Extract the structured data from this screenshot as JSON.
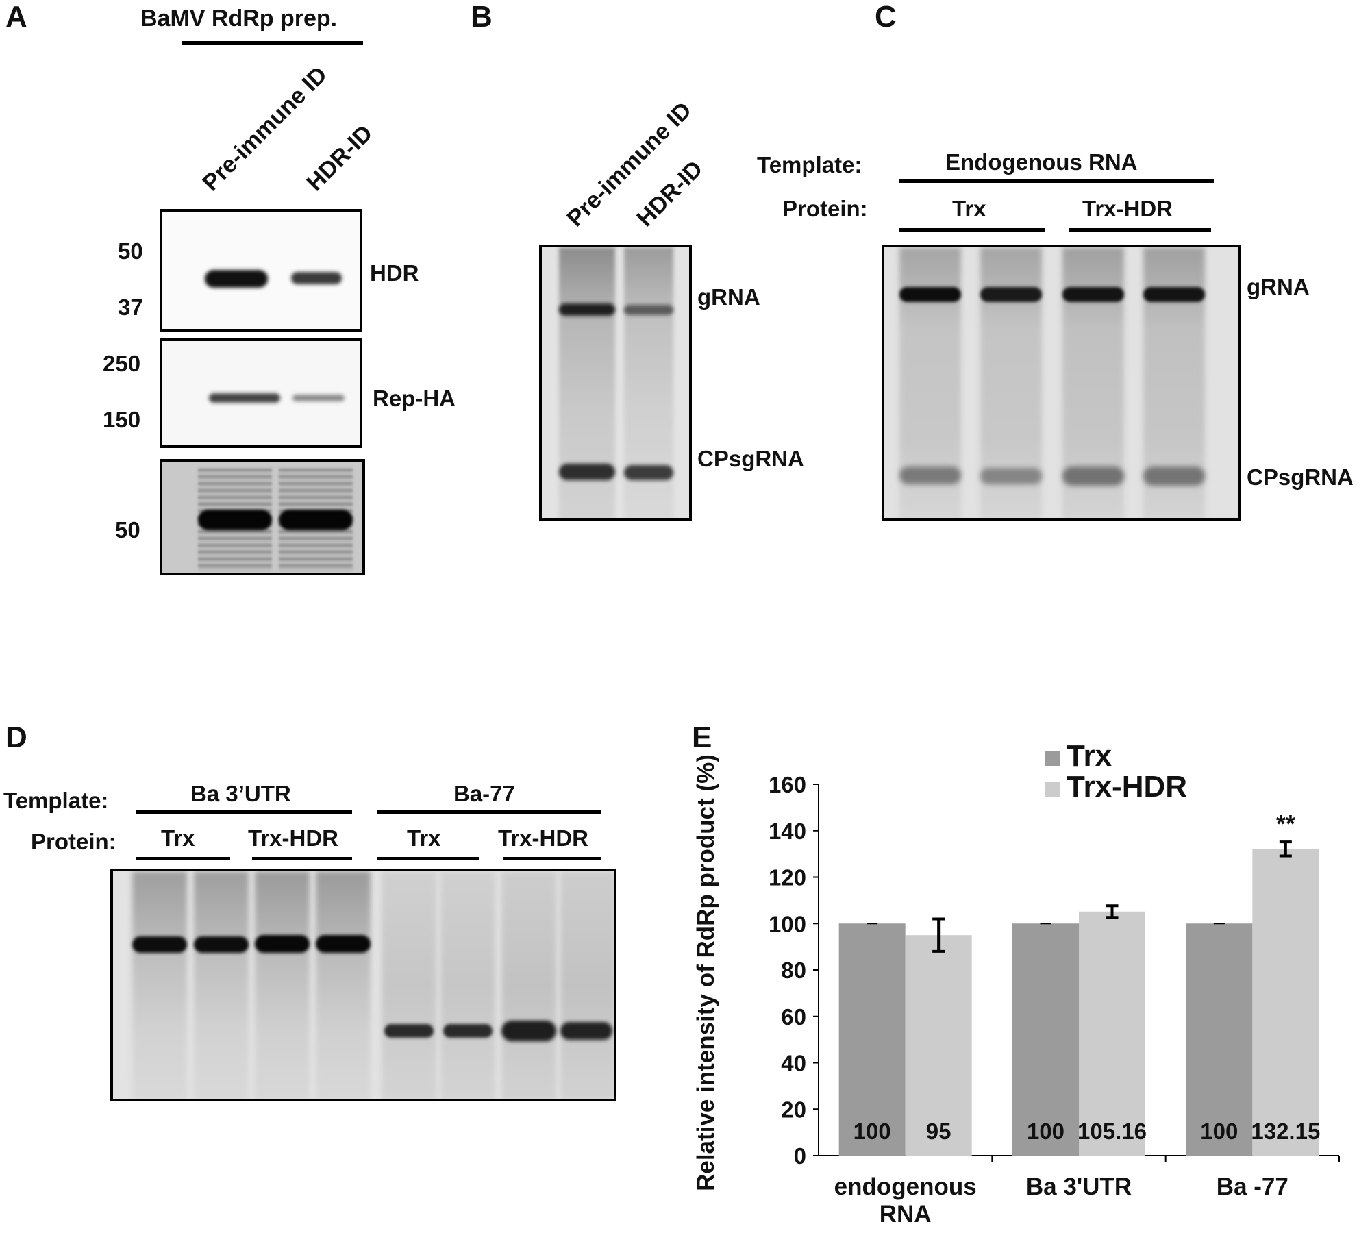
{
  "panel_a": {
    "letter": "A",
    "header": "BaMV RdRp prep.",
    "lanes": [
      "Pre-immune ID",
      "HDR-ID"
    ],
    "blot1": {
      "markers": [
        "50",
        "37"
      ],
      "label": "HDR"
    },
    "blot2": {
      "markers": [
        "250",
        "150"
      ],
      "label": "Rep-HA"
    },
    "gel": {
      "markers": [
        "50"
      ]
    }
  },
  "panel_b": {
    "letter": "B",
    "lanes": [
      "Pre-immune ID",
      "HDR-ID"
    ],
    "band_labels": [
      "gRNA",
      "CPsgRNA"
    ]
  },
  "panel_c": {
    "letter": "C",
    "template_label": "Template:",
    "template_value": "Endogenous RNA",
    "protein_label": "Protein:",
    "proteins": [
      "Trx",
      "Trx-HDR"
    ],
    "band_labels": [
      "gRNA",
      "CPsgRNA"
    ]
  },
  "panel_d": {
    "letter": "D",
    "template_label": "Template:",
    "templates": [
      "Ba 3’UTR",
      "Ba-77"
    ],
    "protein_label": "Protein:",
    "proteins": [
      "Trx",
      "Trx-HDR",
      "Trx",
      "Trx-HDR"
    ]
  },
  "panel_e": {
    "letter": "E",
    "significance": "**"
  },
  "chart_data": {
    "type": "bar",
    "ylabel": "Relative intensity of RdRp product (%)",
    "ylim": [
      0,
      160
    ],
    "yticks": [
      "0",
      "20",
      "40",
      "60",
      "80",
      "100",
      "120",
      "140",
      "160"
    ],
    "categories": [
      "endogenous RNA",
      "Ba 3'UTR",
      "Ba -77"
    ],
    "category_labels": [
      [
        "endogenous",
        "RNA"
      ],
      [
        "Ba 3'UTR"
      ],
      [
        "Ba -77"
      ]
    ],
    "series": [
      {
        "name": "Trx",
        "color": "#9b9b9b",
        "values": [
          100,
          100,
          100
        ],
        "errors": [
          0,
          0,
          0
        ],
        "labels": [
          "100",
          "100",
          "100"
        ]
      },
      {
        "name": "Trx-HDR",
        "color": "#cccccc",
        "values": [
          95,
          105.16,
          132.15
        ],
        "errors": [
          7,
          2.5,
          3
        ],
        "labels": [
          "95",
          "105.16",
          "132.15"
        ]
      }
    ],
    "legend_position": "top-left"
  }
}
